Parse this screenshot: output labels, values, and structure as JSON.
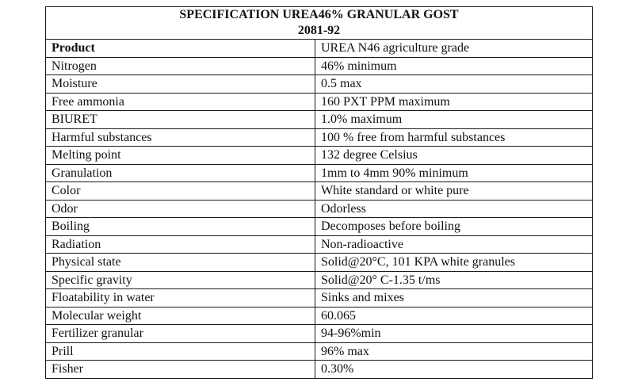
{
  "title": {
    "line1": "SPECIFICATION UREA46% GRANULAR GOST",
    "line2": "2081-92"
  },
  "rows": [
    {
      "label": "Product",
      "value": "UREA N46 agriculture grade"
    },
    {
      "label": "Nitrogen",
      "value": "46% minimum"
    },
    {
      "label": "Moisture",
      "value": "0.5 max"
    },
    {
      "label": "Free ammonia",
      "value": "160 PXT PPM maximum"
    },
    {
      "label": "BIURET",
      "value": "1.0% maximum"
    },
    {
      "label": "Harmful substances",
      "value": "100 % free from harmful substances"
    },
    {
      "label": "Melting point",
      "value": "132 degree Celsius"
    },
    {
      "label": "Granulation",
      "value": "1mm to 4mm 90% minimum"
    },
    {
      "label": "Color",
      "value": "White standard or white pure"
    },
    {
      "label": "Odor",
      "value": "Odorless"
    },
    {
      "label": "Boiling",
      "value": "Decomposes before boiling"
    },
    {
      "label": "Radiation",
      "value": "Non-radioactive"
    },
    {
      "label": "Physical state",
      "value": "Solid@20°C, 101 KPA white granules"
    },
    {
      "label": "Specific gravity",
      "value": "Solid@20° C-1.35 t/ms"
    },
    {
      "label": "Floatability in water",
      "value": "Sinks and mixes"
    },
    {
      "label": "Molecular weight",
      "value": "60.065"
    },
    {
      "label": "Fertilizer granular",
      "value": "94-96%min"
    },
    {
      "label": "Prill",
      "value": "96% max"
    },
    {
      "label": "Fisher",
      "value": "0.30%"
    }
  ]
}
